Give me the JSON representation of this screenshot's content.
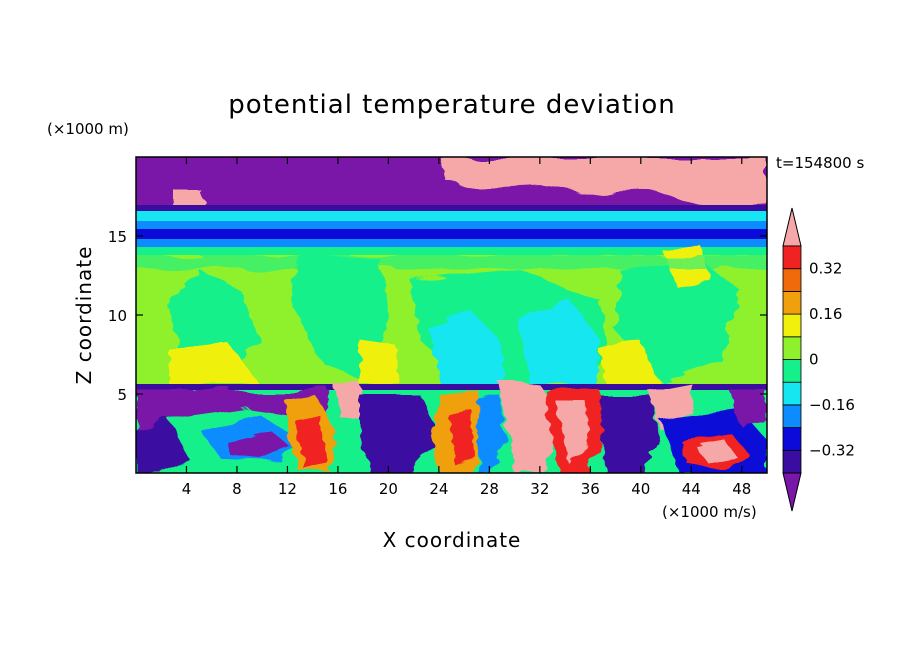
{
  "chart_data": {
    "type": "heatmap",
    "title": "potential temperature deviation",
    "xlabel": "X coordinate",
    "ylabel": "Z coordinate",
    "x_unit": "(×1000 m/s)",
    "y_unit": "(×1000 m)",
    "time_label": "t=154800 s",
    "xlim": [
      0,
      50
    ],
    "ylim": [
      0,
      20
    ],
    "x_ticks": [
      4,
      8,
      12,
      16,
      20,
      24,
      28,
      32,
      36,
      40,
      44,
      48
    ],
    "y_ticks": [
      5,
      10,
      15
    ],
    "colorbar": {
      "levels": [
        -0.4,
        -0.32,
        -0.24,
        -0.16,
        -0.08,
        0,
        0.08,
        0.16,
        0.24,
        0.32,
        0.4
      ],
      "labeled_levels": [
        0.32,
        0.16,
        0,
        -0.16,
        -0.32
      ],
      "tick_labels": [
        "0.32",
        "0.16",
        "0",
        "−0.16",
        "−0.32"
      ],
      "extend": "both",
      "colors": [
        "#7a16a8",
        "#3a0ca0",
        "#0c0ad8",
        "#0c8cff",
        "#16e6f0",
        "#16f08a",
        "#8ff02c",
        "#f0f00c",
        "#f0a00c",
        "#f06a0c",
        "#f02222",
        "#f6a8a8"
      ]
    },
    "layers": [
      {
        "z_range": [
          17.5,
          20
        ],
        "class": "strongly negative with positive patches",
        "color": "#7a16a8"
      },
      {
        "z_range": [
          15,
          17.5
        ],
        "class": "negative bands",
        "color": "#0c0ad8"
      },
      {
        "z_range": [
          5.5,
          14.5
        ],
        "class": "near zero",
        "color": "#8ff02c"
      },
      {
        "z_range": [
          0,
          5.5
        ],
        "class": "mixed convective cells",
        "color": "#f02222"
      }
    ]
  }
}
